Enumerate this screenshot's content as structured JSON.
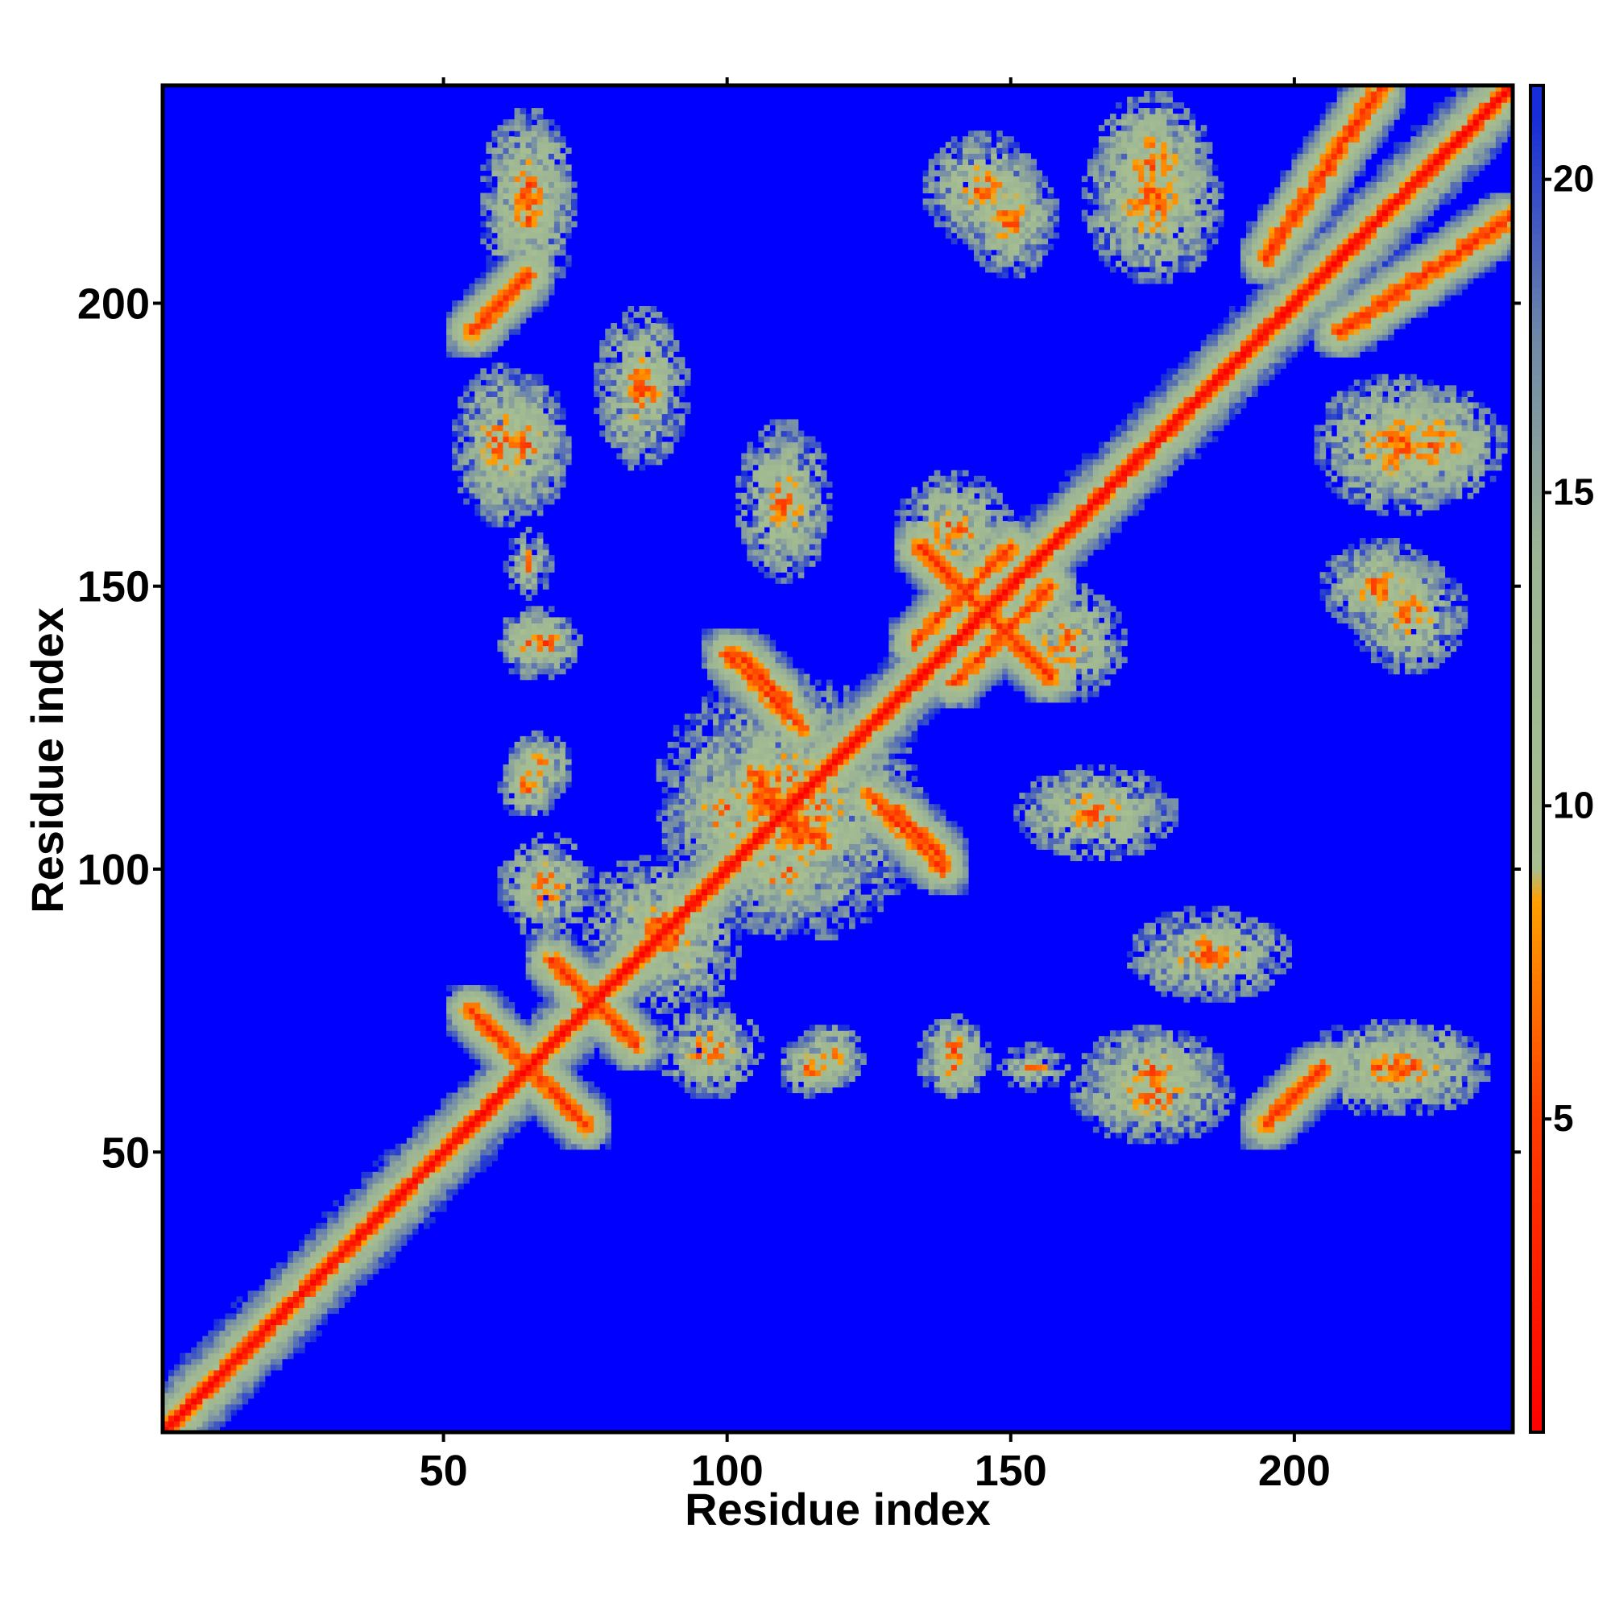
{
  "chart_data": {
    "type": "heatmap",
    "title": "",
    "xlabel": "Residue index",
    "ylabel": "Residue index",
    "xlim": [
      1,
      238
    ],
    "ylim": [
      1,
      238
    ],
    "n_residues": 238,
    "x_ticks": [
      50,
      100,
      150,
      200
    ],
    "y_ticks": [
      50,
      100,
      150,
      200
    ],
    "colorbar": {
      "range": [
        0,
        21.5
      ],
      "ticks": [
        5,
        10,
        15,
        20
      ],
      "stops": [
        {
          "value": 0.0,
          "color": "#ff0000"
        },
        {
          "value": 5.0,
          "color": "#ff3c00"
        },
        {
          "value": 8.5,
          "color": "#ffa000"
        },
        {
          "value": 9.0,
          "color": "#a8c090"
        },
        {
          "value": 14.0,
          "color": "#9cb494"
        },
        {
          "value": 17.5,
          "color": "#6f88a8"
        },
        {
          "value": 21.5,
          "color": "#0a20e0"
        }
      ],
      "cutoff_color": "#0000ff",
      "cutoff_value": 21
    },
    "value_description": "Pairwise residue distance map (symmetric)",
    "features": {
      "diagonal_band": [
        1,
        238
      ],
      "antiparallel_contacts": [
        {
          "i": [
            55,
            75
          ],
          "j": [
            75,
            55
          ]
        },
        {
          "i": [
            69,
            82
          ],
          "j": [
            84,
            71
          ]
        },
        {
          "i": [
            100,
            113
          ],
          "j": [
            138,
            125
          ]
        },
        {
          "i": [
            134,
            157
          ],
          "j": [
            157,
            134
          ]
        },
        {
          "i": [
            140,
            157
          ],
          "j": [
            133,
            150
          ]
        },
        {
          "i": [
            105,
            113
          ],
          "j": [
            117,
            105
          ]
        },
        {
          "i": [
            130,
            138
          ],
          "j": [
            110,
            102
          ]
        }
      ],
      "parallel_contacts": [
        {
          "i": [
            55,
            65
          ],
          "j": [
            195,
            205
          ]
        },
        {
          "i": [
            195,
            205
          ],
          "j": [
            55,
            65
          ]
        },
        {
          "i": [
            208,
            238
          ],
          "j": [
            195,
            215
          ]
        },
        {
          "i": [
            195,
            215
          ],
          "j": [
            208,
            238
          ]
        }
      ],
      "contact_blobs": [
        {
          "center": [
            110,
            112
          ],
          "size": [
            22,
            22
          ]
        },
        {
          "center": [
            90,
            88
          ],
          "size": [
            12,
            14
          ]
        },
        {
          "center": [
            110,
            100
          ],
          "size": [
            10,
            10
          ]
        },
        {
          "center": [
            68,
            96
          ],
          "size": [
            8,
            8
          ]
        },
        {
          "center": [
            98,
            68
          ],
          "size": [
            8,
            8
          ]
        },
        {
          "center": [
            115,
            65
          ],
          "size": [
            6,
            5
          ]
        },
        {
          "center": [
            65,
            115
          ],
          "size": [
            5,
            6
          ]
        },
        {
          "center": [
            140,
            65
          ],
          "size": [
            6,
            5
          ]
        },
        {
          "center": [
            65,
            140
          ],
          "size": [
            5,
            6
          ]
        },
        {
          "center": [
            154,
            65
          ],
          "size": [
            6,
            4
          ]
        },
        {
          "center": [
            175,
            65
          ],
          "size": [
            12,
            7
          ]
        },
        {
          "center": [
            65,
            175
          ],
          "size": [
            7,
            12
          ]
        },
        {
          "center": [
            185,
            85
          ],
          "size": [
            14,
            8
          ]
        },
        {
          "center": [
            85,
            185
          ],
          "size": [
            8,
            14
          ]
        },
        {
          "center": [
            220,
            65
          ],
          "size": [
            14,
            8
          ]
        },
        {
          "center": [
            65,
            220
          ],
          "size": [
            8,
            14
          ]
        },
        {
          "center": [
            165,
            110
          ],
          "size": [
            14,
            8
          ]
        },
        {
          "center": [
            110,
            165
          ],
          "size": [
            8,
            14
          ]
        },
        {
          "center": [
            160,
            140
          ],
          "size": [
            10,
            10
          ]
        },
        {
          "center": [
            140,
            160
          ],
          "size": [
            10,
            10
          ]
        },
        {
          "center": [
            215,
            150
          ],
          "size": [
            10,
            8
          ]
        },
        {
          "center": [
            150,
            215
          ],
          "size": [
            8,
            10
          ]
        },
        {
          "center": [
            225,
            175
          ],
          "size": [
            12,
            10
          ]
        },
        {
          "center": [
            175,
            225
          ],
          "size": [
            10,
            12
          ]
        },
        {
          "center": [
            60,
            175
          ],
          "size": [
            8,
            14
          ]
        },
        {
          "center": [
            175,
            60
          ],
          "size": [
            14,
            8
          ]
        },
        {
          "center": [
            65,
            215
          ],
          "size": [
            8,
            14
          ]
        },
        {
          "center": [
            145,
            220
          ],
          "size": [
            10,
            10
          ]
        },
        {
          "center": [
            220,
            145
          ],
          "size": [
            10,
            10
          ]
        },
        {
          "center": [
            175,
            218
          ],
          "size": [
            12,
            14
          ]
        },
        {
          "center": [
            218,
            175
          ],
          "size": [
            14,
            12
          ]
        },
        {
          "center": [
            68,
            140
          ],
          "size": [
            6,
            6
          ]
        },
        {
          "center": [
            140,
            68
          ],
          "size": [
            6,
            6
          ]
        },
        {
          "center": [
            67,
            118
          ],
          "size": [
            6,
            6
          ]
        },
        {
          "center": [
            118,
            67
          ],
          "size": [
            6,
            6
          ]
        }
      ]
    }
  }
}
